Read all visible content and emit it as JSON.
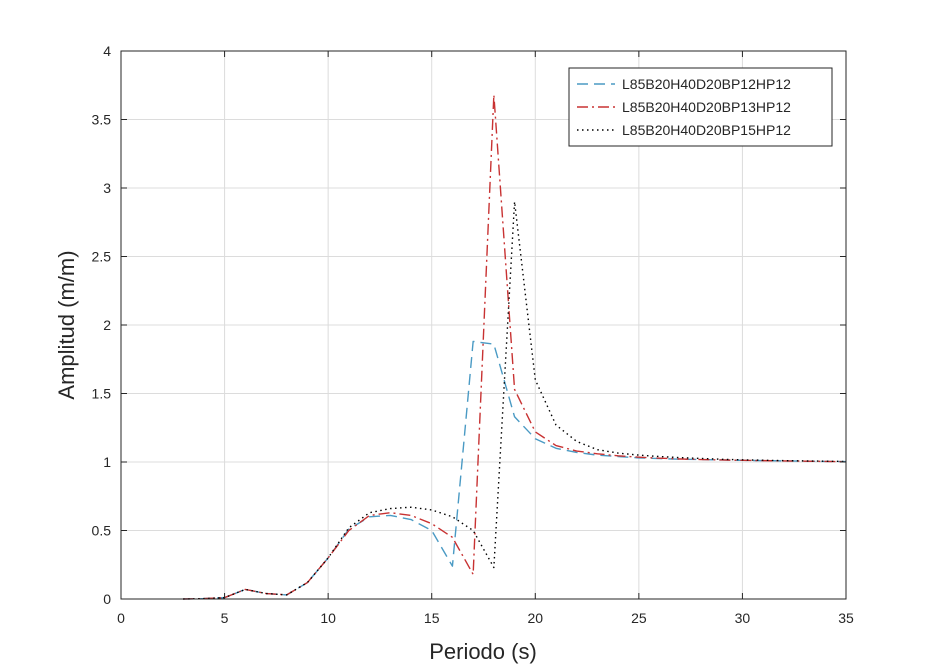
{
  "chart_data": {
    "type": "line",
    "xlabel": "Periodo (s)",
    "ylabel": "Amplitud (m/m)",
    "xlim": [
      0,
      35
    ],
    "ylim": [
      0,
      4
    ],
    "xticks": [
      0,
      5,
      10,
      15,
      20,
      25,
      30,
      35
    ],
    "yticks": [
      0,
      0.5,
      1,
      1.5,
      2,
      2.5,
      3,
      3.5,
      4
    ],
    "xtick_labels": [
      "0",
      "5",
      "10",
      "15",
      "20",
      "25",
      "30",
      "35"
    ],
    "ytick_labels": [
      "0",
      "0.5",
      "1",
      "1.5",
      "2",
      "2.5",
      "3",
      "3.5",
      "4"
    ],
    "grid": true,
    "legend_position": "top-right",
    "series": [
      {
        "name": "L85B20H40D20BP12HP12",
        "color": "#4a9ac4",
        "dash": "dashed",
        "x": [
          3,
          4,
          5,
          6,
          7,
          8,
          9,
          10,
          11,
          12,
          13,
          14,
          15,
          16,
          17,
          18,
          19,
          20,
          21,
          22,
          23,
          24,
          25,
          26,
          27,
          28,
          29,
          30,
          31,
          32,
          33,
          34,
          35
        ],
        "y": [
          0,
          0.003,
          0.01,
          0.07,
          0.04,
          0.03,
          0.12,
          0.3,
          0.51,
          0.6,
          0.61,
          0.58,
          0.5,
          0.24,
          1.88,
          1.86,
          1.33,
          1.17,
          1.1,
          1.07,
          1.05,
          1.04,
          1.03,
          1.025,
          1.02,
          1.018,
          1.015,
          1.012,
          1.01,
          1.008,
          1.006,
          1.004,
          1.003
        ]
      },
      {
        "name": "L85B20H40D20BP13HP12",
        "color": "#c83232",
        "dash": "dashdot",
        "x": [
          3,
          4,
          5,
          6,
          7,
          8,
          9,
          10,
          11,
          12,
          13,
          14,
          15,
          16,
          17,
          18,
          19,
          20,
          21,
          22,
          23,
          24,
          25,
          26,
          27,
          28,
          29,
          30,
          31,
          32,
          33,
          34,
          35
        ],
        "y": [
          0,
          0.003,
          0.01,
          0.07,
          0.04,
          0.03,
          0.12,
          0.3,
          0.5,
          0.61,
          0.63,
          0.61,
          0.55,
          0.45,
          0.18,
          3.68,
          1.53,
          1.22,
          1.12,
          1.08,
          1.06,
          1.045,
          1.035,
          1.028,
          1.022,
          1.018,
          1.015,
          1.012,
          1.01,
          1.008,
          1.006,
          1.004,
          1.003
        ]
      },
      {
        "name": "L85B20H40D20BP15HP12",
        "color": "#000000",
        "dash": "dotted",
        "x": [
          3,
          4,
          5,
          6,
          7,
          8,
          9,
          10,
          11,
          12,
          13,
          14,
          15,
          16,
          17,
          18,
          19,
          20,
          21,
          22,
          23,
          24,
          25,
          26,
          27,
          28,
          29,
          30,
          31,
          32,
          33,
          34,
          35
        ],
        "y": [
          0,
          0.003,
          0.01,
          0.07,
          0.04,
          0.03,
          0.12,
          0.3,
          0.52,
          0.63,
          0.66,
          0.67,
          0.65,
          0.6,
          0.5,
          0.23,
          2.9,
          1.6,
          1.27,
          1.15,
          1.09,
          1.065,
          1.05,
          1.04,
          1.032,
          1.026,
          1.02,
          1.016,
          1.013,
          1.01,
          1.008,
          1.006,
          1.004
        ]
      }
    ]
  }
}
